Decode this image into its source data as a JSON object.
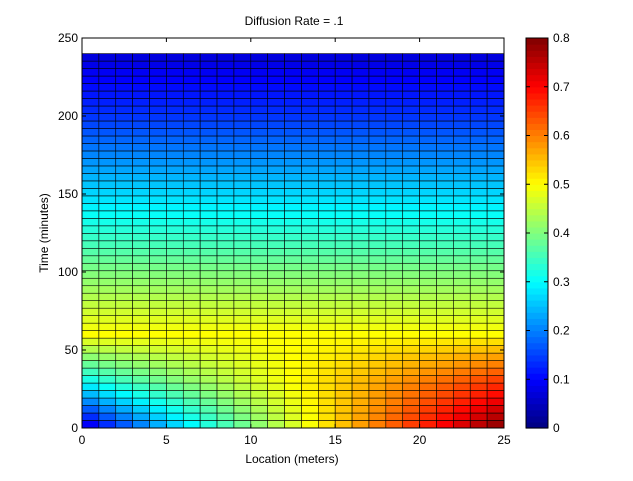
{
  "chart_data": {
    "type": "heatmap",
    "title": "Diffusion Rate = .1",
    "xlabel": "Location (meters)",
    "ylabel": "Time (minutes)",
    "xlim": [
      0,
      25
    ],
    "ylim": [
      0,
      250
    ],
    "x_ticks": [
      0,
      5,
      10,
      15,
      20,
      25
    ],
    "y_ticks": [
      0,
      50,
      100,
      150,
      200,
      250
    ],
    "colorbar": {
      "colormap": "jet",
      "clim": [
        0,
        0.8
      ],
      "ticks": [
        0,
        0.1,
        0.2,
        0.3,
        0.4,
        0.5,
        0.6,
        0.7,
        0.8
      ],
      "tick_labels": [
        "0",
        "0.1",
        "0.2",
        "0.3",
        "0.4",
        "0.5",
        "0.6",
        "0.7",
        "0.8"
      ]
    },
    "grid": {
      "columns": 25,
      "rows": 50,
      "row_height_minutes": 4.8,
      "row_count_note_unused": ""
    },
    "x_edges": [
      0,
      25
    ],
    "y_edges": [
      0,
      240
    ],
    "value_samples": {
      "bottom_row_left": 0.05,
      "bottom_row_right": 0.8,
      "t30_left": 0.3,
      "t30_right": 0.66,
      "t60_uniform": 0.5,
      "t100_uniform": 0.4,
      "t150_uniform": 0.27,
      "t200_uniform": 0.14,
      "top_uniform": 0.07
    }
  }
}
